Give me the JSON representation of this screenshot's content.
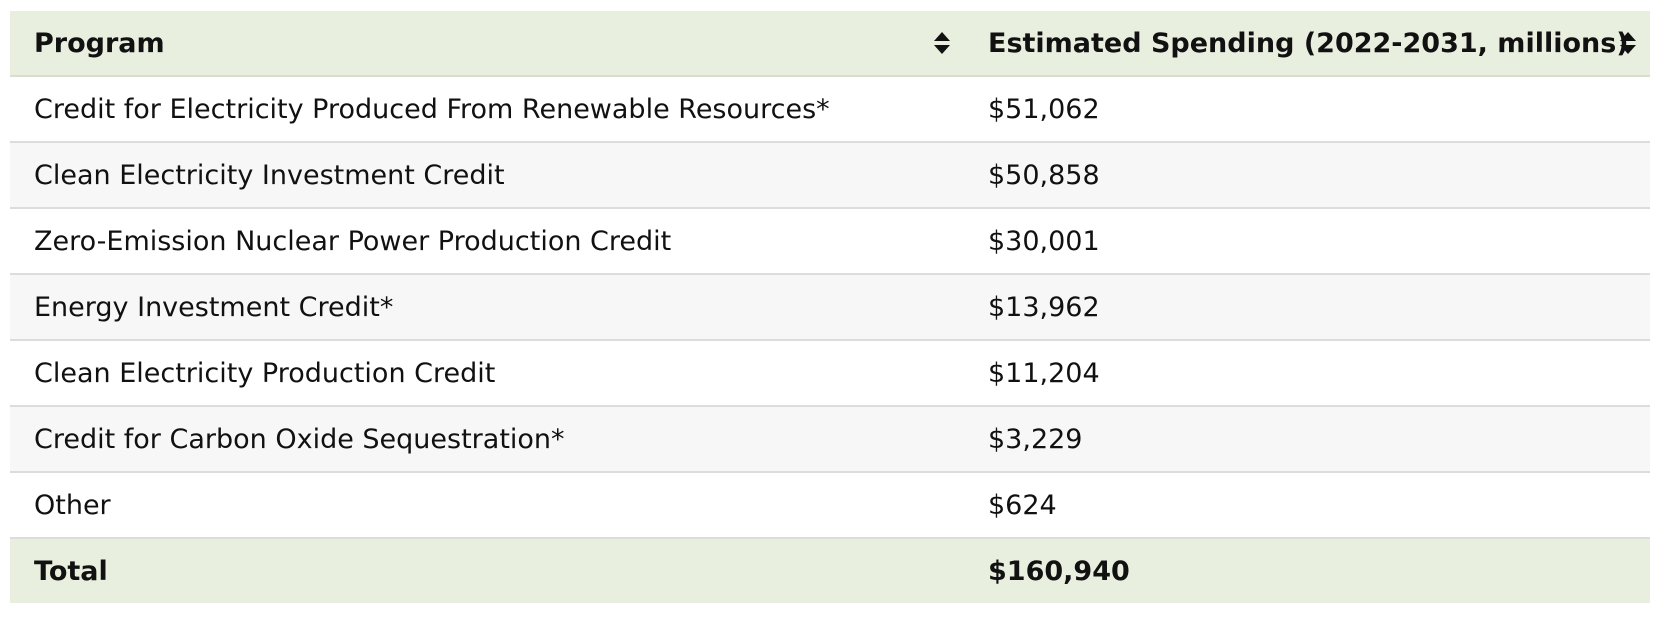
{
  "table": {
    "headers": {
      "program": "Program",
      "spending": "Estimated Spending (2022-2031, millions)"
    },
    "rows": [
      {
        "program": "Credit for Electricity Produced From Renewable Resources*",
        "spending": "$51,062"
      },
      {
        "program": "Clean Electricity Investment Credit",
        "spending": "$50,858"
      },
      {
        "program": "Zero-Emission Nuclear Power Production Credit",
        "spending": "$30,001"
      },
      {
        "program": "Energy Investment Credit*",
        "spending": "$13,962"
      },
      {
        "program": "Clean Electricity Production Credit",
        "spending": "$11,204"
      },
      {
        "program": "Credit for Carbon Oxide Sequestration*",
        "spending": "$3,229"
      },
      {
        "program": "Other",
        "spending": "$624"
      }
    ],
    "total": {
      "program": "Total",
      "spending": "$160,940"
    }
  },
  "icons": {
    "sort": "sort-icon"
  },
  "colors": {
    "header_bg": "#e8efdf",
    "alt_row_bg": "#f7f7f7",
    "border": "#dcdcdc"
  }
}
